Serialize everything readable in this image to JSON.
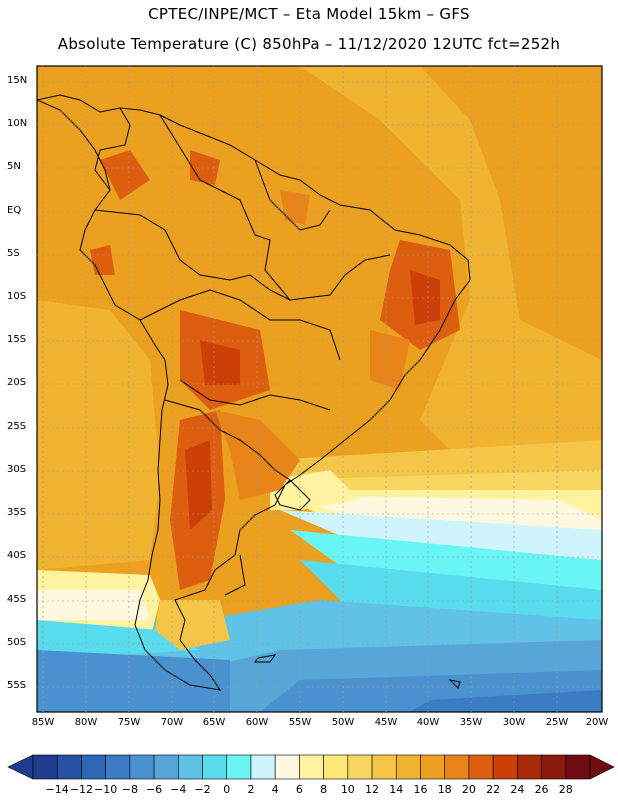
{
  "header": {
    "line1": "CPTEC/INPE/MCT –  Eta Model 15km – GFS",
    "line2": "Absolute Temperature (C) 850hPa – 11/12/2020 12UTC fct=252h"
  },
  "axes": {
    "lat_labels": [
      "15N",
      "10N",
      "5N",
      "EQ",
      "5S",
      "10S",
      "15S",
      "20S",
      "25S",
      "30S",
      "35S",
      "40S",
      "45S",
      "50S",
      "55S"
    ],
    "lon_labels": [
      "85W",
      "80W",
      "75W",
      "70W",
      "65W",
      "60W",
      "55W",
      "50W",
      "45W",
      "40W",
      "35W",
      "30W",
      "25W",
      "20W"
    ]
  },
  "colorbar": {
    "labels": [
      "-14",
      "-12",
      "-10",
      "-8",
      "-6",
      "-4",
      "-2",
      "0",
      "2",
      "4",
      "6",
      "8",
      "10",
      "12",
      "14",
      "16",
      "18",
      "20",
      "22",
      "24",
      "26",
      "28"
    ],
    "colors": [
      "#1e3d8f",
      "#2752a3",
      "#2f66b5",
      "#3b7cc4",
      "#4a92cf",
      "#58a6d8",
      "#5fc2e6",
      "#58dcee",
      "#6af5f5",
      "#cef5fb",
      "#fff8e0",
      "#fff3a0",
      "#fde878",
      "#f8d760",
      "#f4c547",
      "#f0b430",
      "#eca020",
      "#e88418",
      "#de5e10",
      "#cc4008",
      "#a82a08",
      "#8a1a0a",
      "#6e0c12"
    ]
  }
}
